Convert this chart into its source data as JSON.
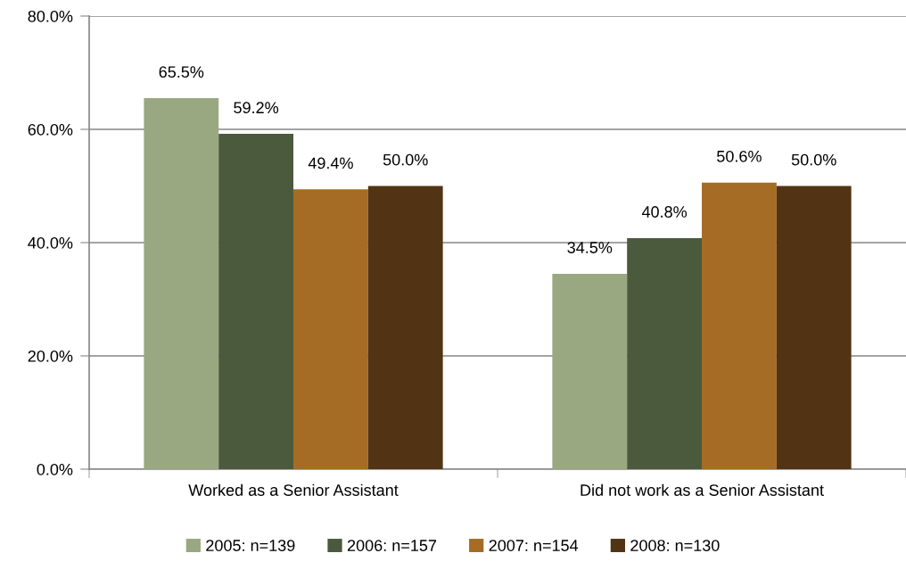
{
  "chart_data": {
    "type": "bar",
    "categories": [
      "Worked as a Senior Assistant",
      "Did not work as a Senior Assistant"
    ],
    "series": [
      {
        "name": "2005: n=139",
        "color": "#9aa881",
        "values": [
          65.5,
          34.5
        ],
        "value_labels": [
          "65.5%",
          "34.5%"
        ]
      },
      {
        "name": "2006: n=157",
        "color": "#4b5a3c",
        "values": [
          59.2,
          40.8
        ],
        "value_labels": [
          "59.2%",
          "40.8%"
        ]
      },
      {
        "name": "2007: n=154",
        "color": "#a56c25",
        "values": [
          49.4,
          50.6
        ],
        "value_labels": [
          "49.4%",
          "50.6%"
        ]
      },
      {
        "name": "2008: n=130",
        "color": "#523415",
        "values": [
          50.0,
          50.0
        ],
        "value_labels": [
          "50.0%",
          "50.0%"
        ]
      }
    ],
    "ylim": [
      0,
      80
    ],
    "yticks": [
      {
        "value": 0,
        "label": "0.0%"
      },
      {
        "value": 20,
        "label": "20.0%"
      },
      {
        "value": 40,
        "label": "40.0%"
      },
      {
        "value": 60,
        "label": "60.0%"
      },
      {
        "value": 80,
        "label": "80.0%"
      }
    ],
    "grid": "y",
    "legend": "bottom"
  }
}
